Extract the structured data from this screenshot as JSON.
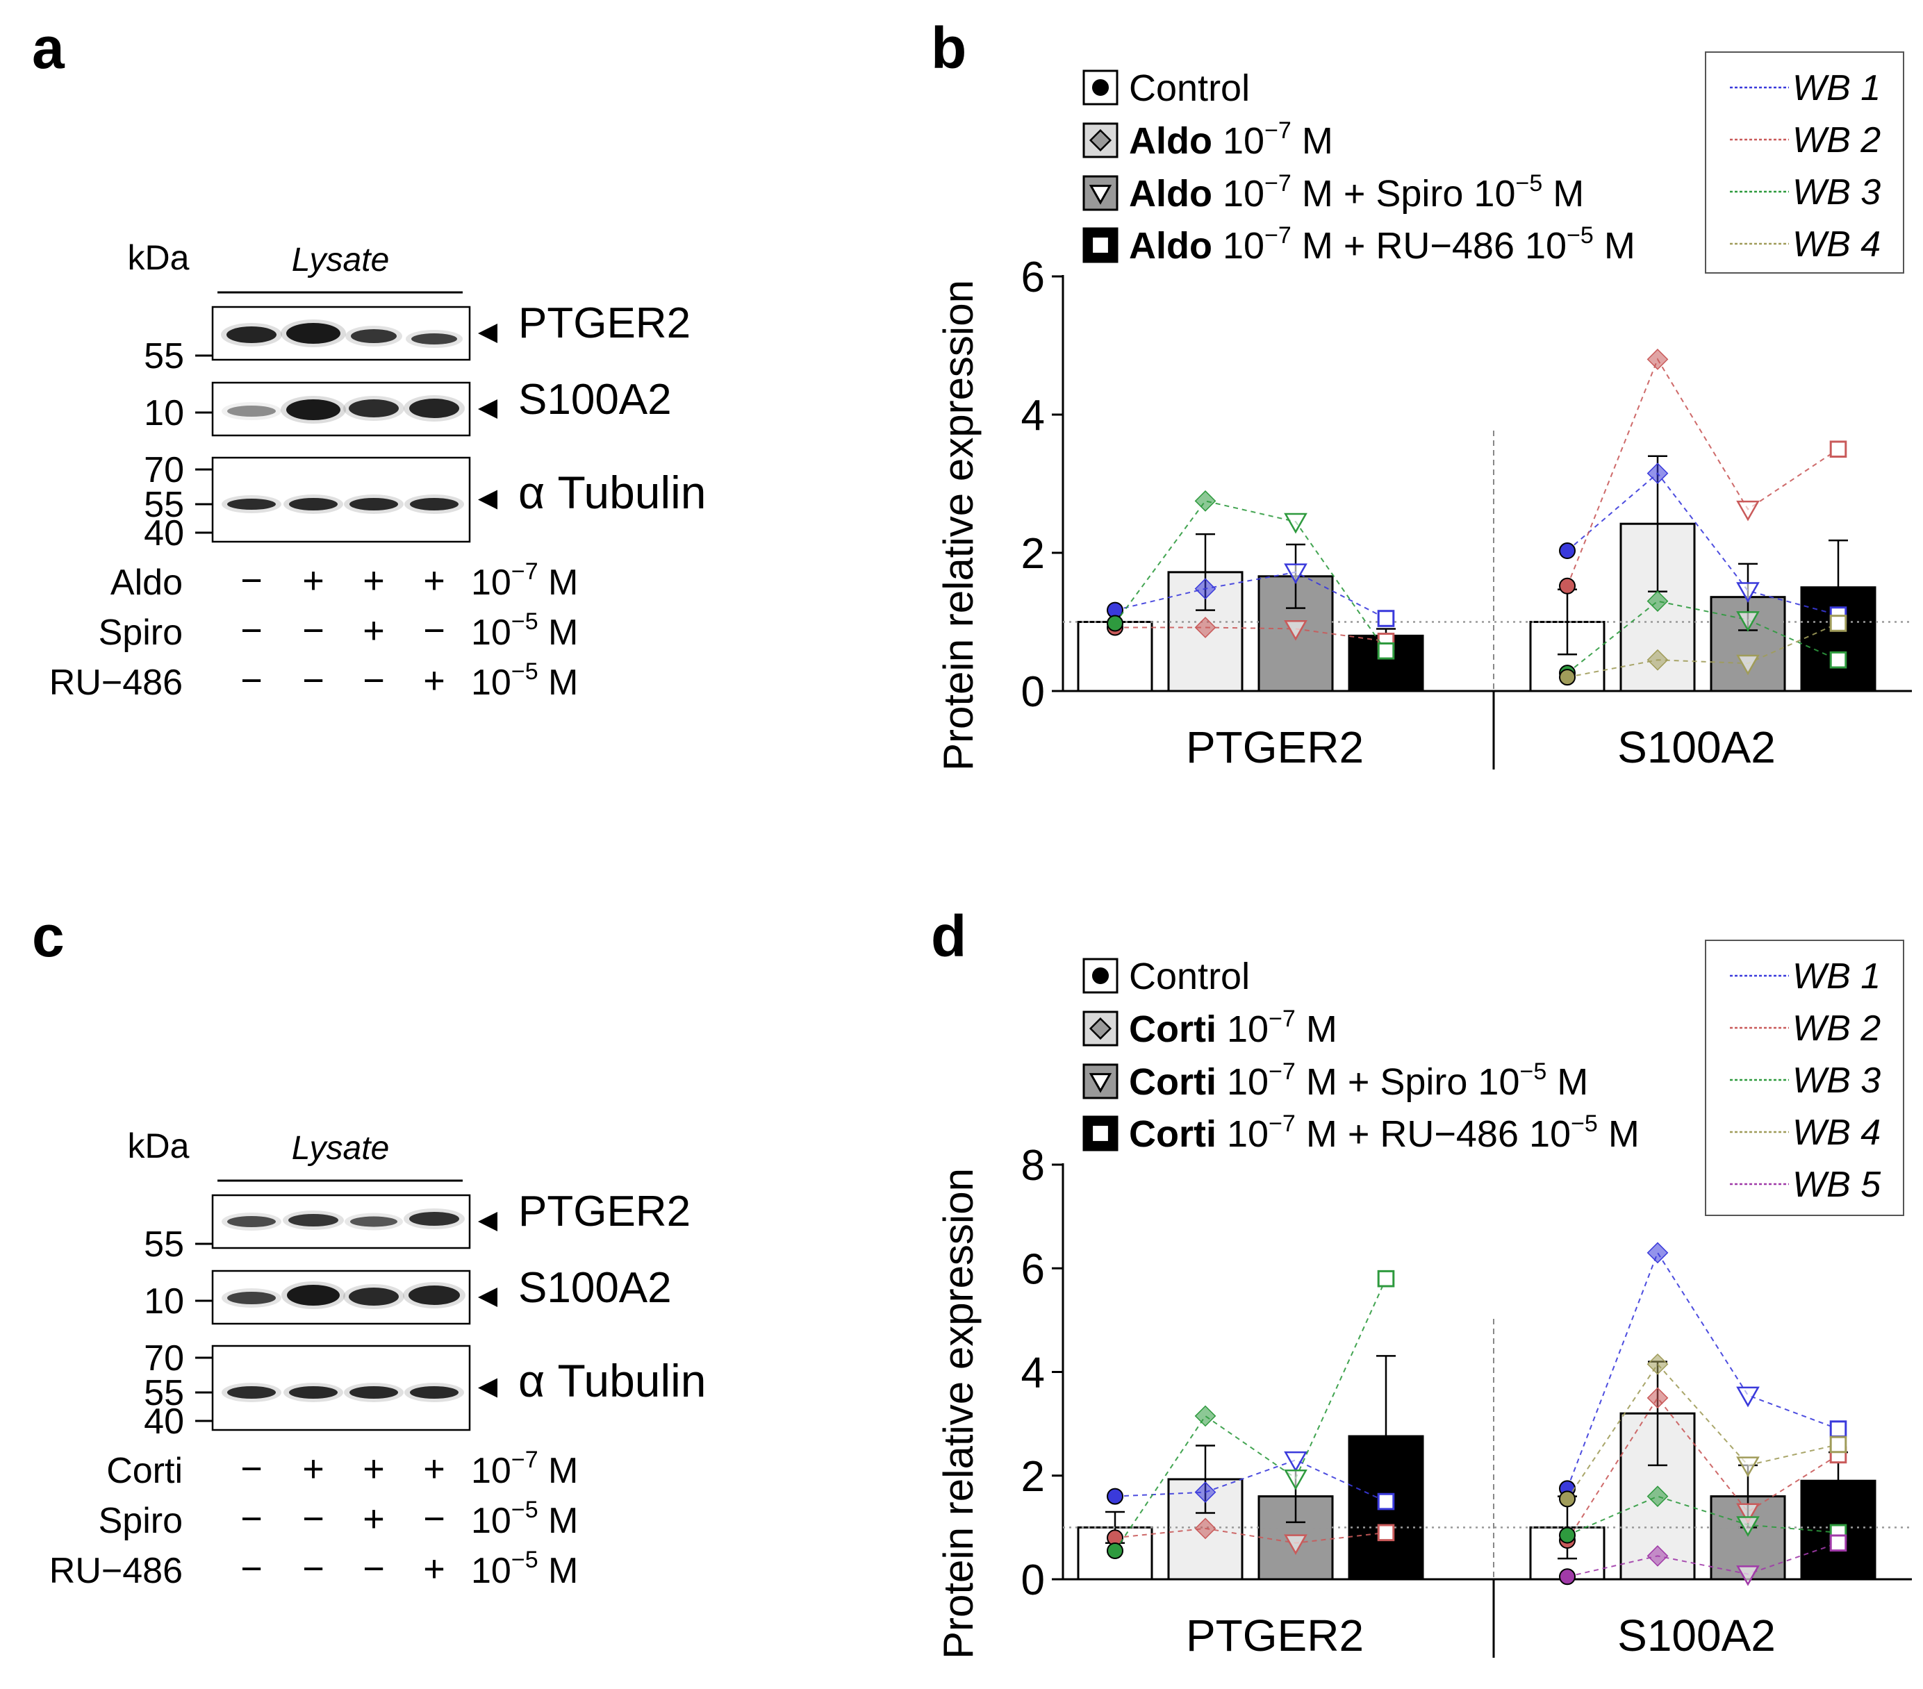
{
  "panel_letters": [
    "a",
    "b",
    "c",
    "d"
  ],
  "panel_a": {
    "kda_label": "kDa",
    "lysate_label": "Lysate",
    "markers": {
      "ptger2": [
        "55"
      ],
      "s100a2": [
        "10"
      ],
      "tubulin": [
        "70",
        "55",
        "40"
      ]
    },
    "band_labels": [
      "PTGER2",
      "S100A2",
      "α Tubulin"
    ],
    "treatments": [
      {
        "label": "Aldo",
        "signs": [
          "−",
          "+",
          "+",
          "+"
        ],
        "conc_base": "10",
        "conc_exp": "−7",
        "conc_unit": " M"
      },
      {
        "label": "Spiro",
        "signs": [
          "−",
          "−",
          "+",
          "−"
        ],
        "conc_base": "10",
        "conc_exp": "−5",
        "conc_unit": " M"
      },
      {
        "label": "RU−486",
        "signs": [
          "−",
          "−",
          "−",
          "+"
        ],
        "conc_base": "10",
        "conc_exp": "−5",
        "conc_unit": " M"
      }
    ]
  },
  "panel_c": {
    "kda_label": "kDa",
    "lysate_label": "Lysate",
    "markers": {
      "ptger2": [
        "55"
      ],
      "s100a2": [
        "10"
      ],
      "tubulin": [
        "70",
        "55",
        "40"
      ]
    },
    "band_labels": [
      "PTGER2",
      "S100A2",
      "α Tubulin"
    ],
    "treatments": [
      {
        "label": "Corti",
        "signs": [
          "−",
          "+",
          "+",
          "+"
        ],
        "conc_base": "10",
        "conc_exp": "−7",
        "conc_unit": " M"
      },
      {
        "label": "Spiro",
        "signs": [
          "−",
          "−",
          "+",
          "−"
        ],
        "conc_base": "10",
        "conc_exp": "−5",
        "conc_unit": " M"
      },
      {
        "label": "RU−486",
        "signs": [
          "−",
          "−",
          "−",
          "+"
        ],
        "conc_base": "10",
        "conc_exp": "−5",
        "conc_unit": " M"
      }
    ]
  },
  "legend_b": [
    {
      "bold": "",
      "text": "Control"
    },
    {
      "bold": "Aldo",
      "text": " 10",
      "exp": "−7",
      "tail": " M"
    },
    {
      "bold": "Aldo",
      "text": " 10",
      "exp": "−7",
      "tail": " M + Spiro 10",
      "exp2": "−5",
      "tail2": " M"
    },
    {
      "bold": "Aldo",
      "text": " 10",
      "exp": "−7",
      "tail": " M + RU−486 10",
      "exp2": "−5",
      "tail2": " M"
    }
  ],
  "legend_d": [
    {
      "bold": "",
      "text": "Control"
    },
    {
      "bold": "Corti",
      "text": " 10",
      "exp": "−7",
      "tail": " M"
    },
    {
      "bold": "Corti",
      "text": " 10",
      "exp": "−7",
      "tail": " M + Spiro 10",
      "exp2": "−5",
      "tail2": " M"
    },
    {
      "bold": "Corti",
      "text": " 10",
      "exp": "−7",
      "tail": " M + RU−486 10",
      "exp2": "−5",
      "tail2": " M"
    }
  ],
  "chart_data": [
    {
      "panel": "b",
      "type": "bar",
      "ylabel": "Protein relative expression",
      "ylim": [
        0,
        6
      ],
      "yticks": [
        0,
        2,
        4,
        6
      ],
      "groups": [
        "PTGER2",
        "S100A2"
      ],
      "bar_colors": [
        "#ffffff",
        "#eeeeee",
        "#999999",
        "#000000"
      ],
      "means": [
        [
          1.0,
          1.72,
          1.66,
          0.8
        ],
        [
          1.0,
          2.42,
          1.36,
          1.5
        ]
      ],
      "errors": [
        [
          0.0,
          0.55,
          0.46,
          0.1
        ],
        [
          0.47,
          0.98,
          0.48,
          0.68
        ]
      ],
      "reference_line": 1.0,
      "wb_names": [
        "WB 1",
        "WB 2",
        "WB 3",
        "WB 4"
      ],
      "wb_colors": [
        "#3a3adb",
        "#c95a5a",
        "#2e9a3e",
        "#a09c5a"
      ],
      "wb_points": [
        [
          [
            1.17,
            1.48,
            1.72,
            1.05
          ],
          [
            2.03,
            3.15,
            1.45,
            1.1
          ]
        ],
        [
          [
            0.92,
            0.92,
            0.9,
            0.72
          ],
          [
            1.52,
            4.8,
            2.63,
            3.5
          ]
        ],
        [
          [
            0.98,
            2.75,
            2.45,
            0.58
          ],
          [
            0.26,
            1.3,
            1.03,
            0.45
          ]
        ],
        [
          [
            null,
            null,
            null,
            null
          ],
          [
            0.2,
            0.45,
            0.4,
            0.98
          ]
        ]
      ]
    },
    {
      "panel": "d",
      "type": "bar",
      "ylabel": "Protein relative expression",
      "ylim": [
        0,
        8
      ],
      "yticks": [
        0,
        2,
        4,
        6,
        8
      ],
      "groups": [
        "PTGER2",
        "S100A2"
      ],
      "bar_colors": [
        "#ffffff",
        "#eeeeee",
        "#999999",
        "#000000"
      ],
      "means": [
        [
          1.0,
          1.93,
          1.6,
          2.76
        ],
        [
          1.0,
          3.2,
          1.6,
          1.9
        ]
      ],
      "errors": [
        [
          0.3,
          0.65,
          0.5,
          1.55
        ],
        [
          0.6,
          1.0,
          0.6,
          0.55
        ]
      ],
      "reference_line": 1.0,
      "wb_names": [
        "WB 1",
        "WB 2",
        "WB 3",
        "WB 4",
        "WB 5"
      ],
      "wb_colors": [
        "#3a3adb",
        "#c95a5a",
        "#2e9a3e",
        "#a09c5a",
        "#a03aa8"
      ],
      "wb_points": [
        [
          [
            1.6,
            1.68,
            2.3,
            1.5
          ],
          [
            1.75,
            6.3,
            3.55,
            2.9
          ]
        ],
        [
          [
            0.8,
            0.98,
            0.7,
            0.9
          ],
          [
            0.75,
            3.5,
            1.3,
            2.4
          ]
        ],
        [
          [
            0.55,
            3.15,
            1.95,
            5.8
          ],
          [
            0.85,
            1.6,
            1.05,
            0.9
          ]
        ],
        [
          [
            null,
            null,
            null,
            null
          ],
          [
            1.55,
            4.15,
            2.2,
            2.6
          ]
        ],
        [
          [
            null,
            null,
            null,
            null
          ],
          [
            0.05,
            0.45,
            0.1,
            0.7
          ]
        ]
      ]
    }
  ]
}
